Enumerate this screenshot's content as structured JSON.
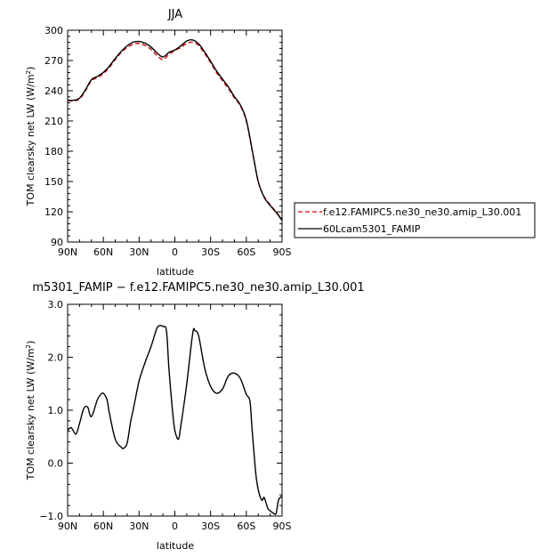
{
  "chart_data": [
    {
      "type": "line",
      "title": "JJA",
      "xlabel": "latitude",
      "ylabel": "TOM clearsky net LW (W/m²)",
      "ylabel_main": "TOM clearsky net LW (W/m",
      "ylabel_sup": "2",
      "ylabel_end": ")",
      "xlim": [
        90,
        -90
      ],
      "ylim": [
        90,
        300
      ],
      "x_ticks": [
        90,
        60,
        30,
        0,
        -30,
        -60,
        -90
      ],
      "x_tick_labels": [
        "90N",
        "60N",
        "30N",
        "0",
        "30S",
        "60S",
        "90S"
      ],
      "y_ticks": [
        90,
        120,
        150,
        180,
        210,
        240,
        270,
        300
      ],
      "y_tick_labels": [
        "90",
        "120",
        "150",
        "180",
        "210",
        "240",
        "270",
        "300"
      ],
      "grid": false,
      "legend_position": "right",
      "series": [
        {
          "name": "f.e12.FAMIPC5.ne30_ne30.amip_L30.001",
          "color": "#cc0000",
          "dash": "dashed",
          "x": [
            90,
            85,
            80,
            75,
            70,
            65,
            60,
            55,
            50,
            45,
            40,
            35,
            30,
            25,
            20,
            15,
            10,
            5,
            0,
            -5,
            -10,
            -15,
            -20,
            -25,
            -30,
            -35,
            -40,
            -45,
            -50,
            -55,
            -60,
            -65,
            -70,
            -75,
            -80,
            -85,
            -90
          ],
          "y": [
            230,
            230,
            232,
            240,
            250,
            253,
            257,
            263,
            271,
            278,
            283,
            286,
            287,
            285,
            281,
            275,
            271,
            276,
            280,
            283,
            287,
            288,
            285,
            277,
            268,
            258,
            250,
            242,
            233,
            225,
            210,
            180,
            150,
            135,
            127,
            120,
            112
          ]
        },
        {
          "name": "60Lcam5301_FAMIP",
          "color": "#000000",
          "dash": "solid",
          "x": [
            90,
            85,
            80,
            75,
            70,
            65,
            60,
            55,
            50,
            45,
            40,
            35,
            30,
            25,
            20,
            15,
            10,
            5,
            0,
            -5,
            -10,
            -15,
            -20,
            -25,
            -30,
            -35,
            -40,
            -45,
            -50,
            -55,
            -60,
            -65,
            -70,
            -75,
            -80,
            -85,
            -90
          ],
          "y": [
            230.7,
            230.6,
            232.7,
            241,
            251,
            254.3,
            258.3,
            264.4,
            272.1,
            279.1,
            284.6,
            288.2,
            288.9,
            287.2,
            283.4,
            277.6,
            273.5,
            278,
            280.5,
            284.5,
            289.4,
            290.4,
            286.5,
            278.5,
            269.3,
            259.6,
            251.6,
            243.6,
            234.2,
            226,
            211.1,
            180.9,
            150,
            134.3,
            126.3,
            119.4,
            111.4
          ]
        }
      ]
    },
    {
      "type": "line",
      "title": "m5301_FAMIP − f.e12.FAMIPC5.ne30_ne30.amip_L30.001",
      "xlabel": "latitude",
      "ylabel": "TOM clearsky net LW (W/m²)",
      "ylabel_main": "TOM clearsky net LW (W/m",
      "ylabel_sup": "2",
      "ylabel_end": ")",
      "xlim": [
        90,
        -90
      ],
      "ylim": [
        -1.0,
        3.0
      ],
      "x_ticks": [
        90,
        60,
        30,
        0,
        -30,
        -60,
        -90
      ],
      "x_tick_labels": [
        "90N",
        "60N",
        "30N",
        "0",
        "30S",
        "60S",
        "90S"
      ],
      "y_ticks": [
        -1.0,
        0.0,
        1.0,
        2.0,
        3.0
      ],
      "y_tick_labels": [
        "−1.0",
        "0.0",
        "1.0",
        "2.0",
        "3.0"
      ],
      "grid": false,
      "series": [
        {
          "color": "#000000",
          "dash": "solid",
          "x": [
            90,
            87,
            83,
            80,
            77,
            75,
            73,
            70,
            65,
            62,
            60,
            57,
            55,
            50,
            45,
            43,
            40,
            37,
            35,
            30,
            25,
            20,
            15,
            12,
            10,
            7,
            5,
            2,
            0,
            -3,
            -5,
            -10,
            -15,
            -17,
            -20,
            -25,
            -30,
            -35,
            -40,
            -45,
            -50,
            -55,
            -60,
            -63,
            -65,
            -68,
            -70,
            -73,
            -75,
            -78,
            -80,
            -83,
            -85,
            -87,
            -90
          ],
          "y": [
            0.62,
            0.67,
            0.55,
            0.75,
            1.0,
            1.07,
            1.05,
            0.88,
            1.2,
            1.3,
            1.32,
            1.2,
            0.95,
            0.45,
            0.3,
            0.28,
            0.38,
            0.8,
            1.0,
            1.55,
            1.9,
            2.2,
            2.55,
            2.6,
            2.58,
            2.5,
            1.8,
            1.0,
            0.62,
            0.45,
            0.7,
            1.5,
            2.45,
            2.5,
            2.4,
            1.8,
            1.45,
            1.32,
            1.4,
            1.65,
            1.7,
            1.6,
            1.3,
            1.17,
            0.6,
            -0.2,
            -0.5,
            -0.7,
            -0.65,
            -0.85,
            -0.9,
            -0.95,
            -0.95,
            -0.7,
            -0.62
          ]
        }
      ]
    }
  ]
}
